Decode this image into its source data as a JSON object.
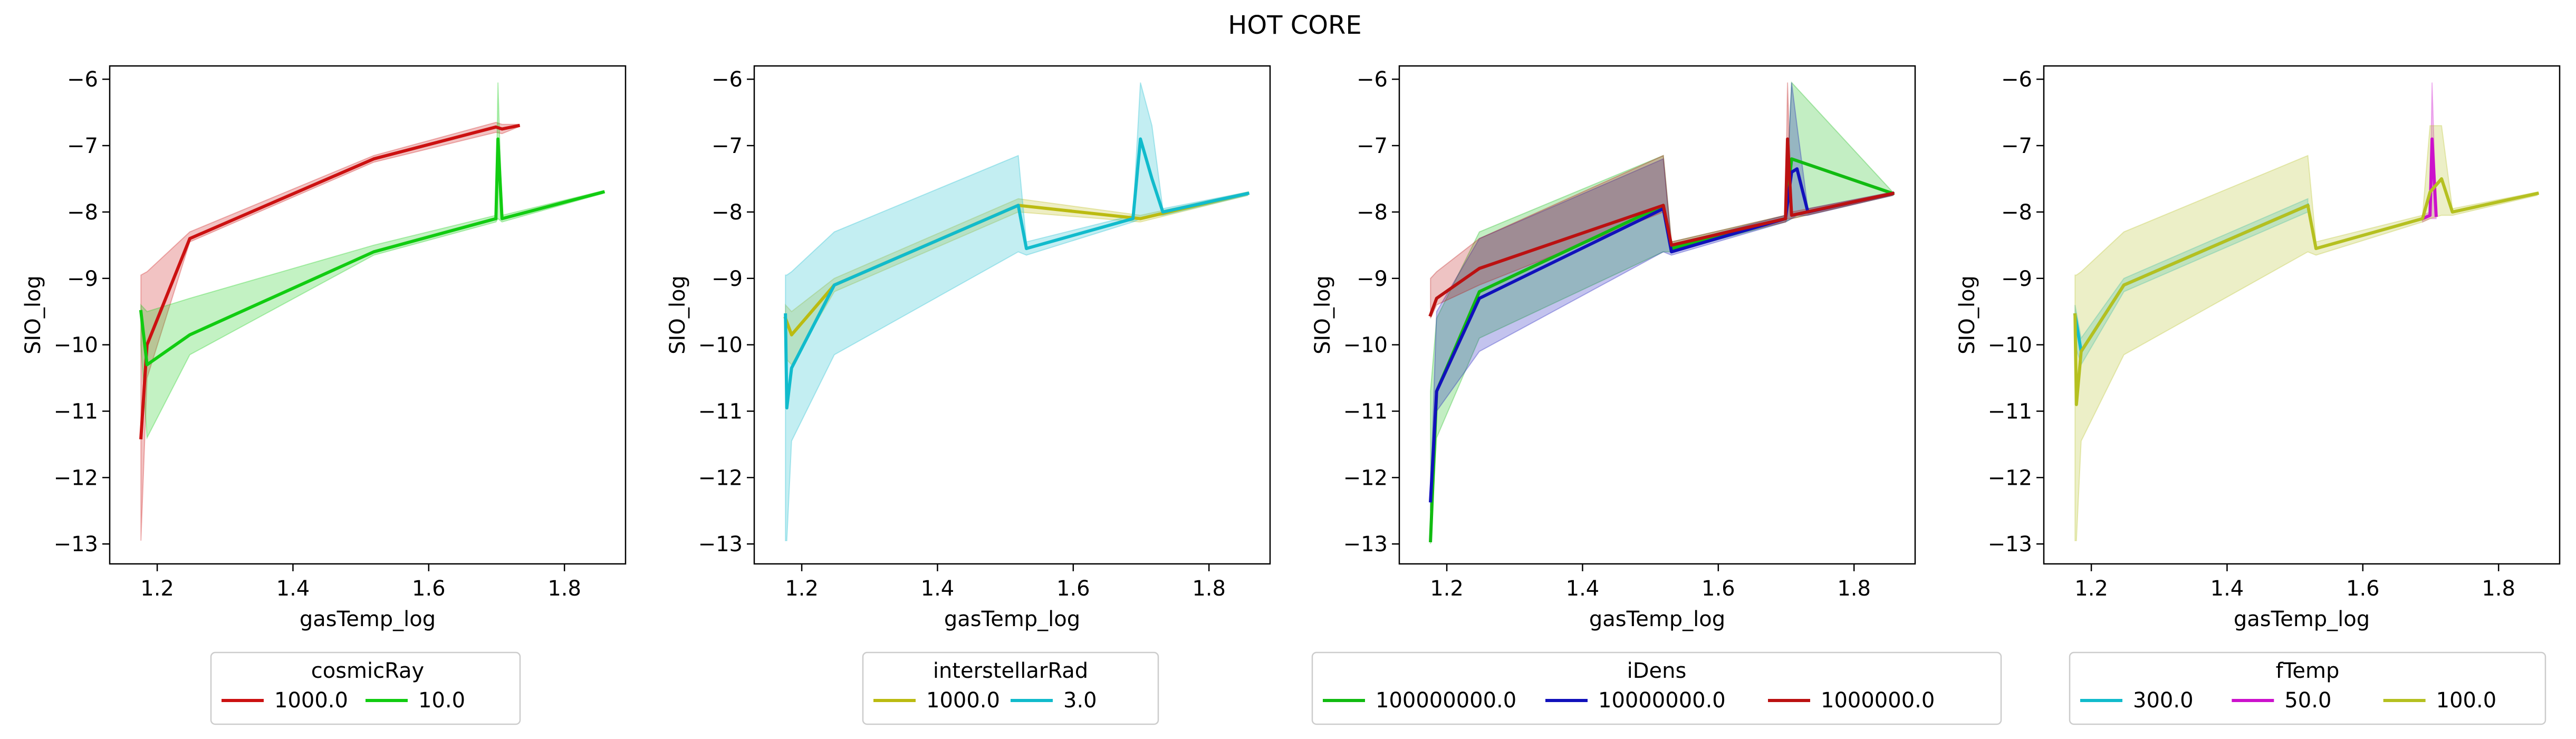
{
  "title": "HOT CORE",
  "chart_data": [
    {
      "type": "line",
      "xlabel": "gasTemp_log",
      "ylabel": "SIO_log",
      "xlim": [
        1.13,
        1.89
      ],
      "ylim": [
        -13.3,
        -5.8
      ],
      "xticks": [
        1.2,
        1.4,
        1.6,
        1.8
      ],
      "yticks": [
        -13,
        -12,
        -11,
        -10,
        -9,
        -8,
        -7,
        -6
      ],
      "legend": {
        "title": "cosmicRay",
        "placement": "below",
        "columns": 2
      },
      "series": [
        {
          "name": "1000.0",
          "color": "#cc1111",
          "x": [
            1.176,
            1.185,
            1.248,
            1.519,
            1.699,
            1.708,
            1.732
          ],
          "y": [
            -11.4,
            -10.0,
            -8.4,
            -7.2,
            -6.72,
            -6.75,
            -6.7
          ],
          "band_low": [
            -12.95,
            -10.5,
            -8.45,
            -7.25,
            -6.8,
            -6.82,
            -6.72
          ],
          "band_high": [
            -8.95,
            -8.9,
            -8.3,
            -7.15,
            -6.65,
            -6.68,
            -6.68
          ]
        },
        {
          "name": "10.0",
          "color": "#11cc11",
          "x": [
            1.176,
            1.185,
            1.248,
            1.519,
            1.699,
            1.702,
            1.708,
            1.857
          ],
          "y": [
            -9.5,
            -10.3,
            -9.85,
            -8.6,
            -8.1,
            -6.9,
            -8.1,
            -7.7
          ],
          "band_low": [
            -10.0,
            -11.4,
            -10.15,
            -8.65,
            -8.15,
            -8.1,
            -8.15,
            -7.72
          ],
          "band_high": [
            -9.4,
            -9.5,
            -9.3,
            -8.5,
            -8.05,
            -6.05,
            -8.05,
            -7.68
          ]
        }
      ]
    },
    {
      "type": "line",
      "xlabel": "gasTemp_log",
      "ylabel": "SIO_log",
      "xlim": [
        1.13,
        1.89
      ],
      "ylim": [
        -13.3,
        -5.8
      ],
      "xticks": [
        1.2,
        1.4,
        1.6,
        1.8
      ],
      "yticks": [
        -13,
        -12,
        -11,
        -10,
        -9,
        -8,
        -7,
        -6
      ],
      "legend": {
        "title": "interstellarRad",
        "placement": "below",
        "columns": 2
      },
      "series": [
        {
          "name": "1000.0",
          "color": "#bbbb11",
          "x": [
            1.176,
            1.185,
            1.248,
            1.519,
            1.699,
            1.857
          ],
          "y": [
            -9.6,
            -9.85,
            -9.1,
            -7.9,
            -8.1,
            -7.72
          ],
          "band_low": [
            -10.2,
            -10.3,
            -9.2,
            -8.0,
            -8.15,
            -7.75
          ],
          "band_high": [
            -9.4,
            -9.5,
            -9.0,
            -7.8,
            -8.05,
            -7.7
          ]
        },
        {
          "name": "3.0",
          "color": "#11bbcc",
          "x": [
            1.176,
            1.178,
            1.185,
            1.248,
            1.519,
            1.531,
            1.688,
            1.699,
            1.716,
            1.732,
            1.857
          ],
          "y": [
            -9.55,
            -10.95,
            -10.35,
            -9.1,
            -7.9,
            -8.55,
            -8.1,
            -6.9,
            -7.5,
            -8.0,
            -7.72
          ],
          "band_low": [
            -12.95,
            -12.95,
            -11.45,
            -10.15,
            -8.6,
            -8.65,
            -8.15,
            -8.1,
            -8.05,
            -8.05,
            -7.75
          ],
          "band_high": [
            -8.95,
            -8.95,
            -8.9,
            -8.3,
            -7.15,
            -8.45,
            -8.05,
            -6.05,
            -6.7,
            -7.95,
            -7.7
          ]
        }
      ]
    },
    {
      "type": "line",
      "xlabel": "gasTemp_log",
      "ylabel": "SIO_log",
      "xlim": [
        1.13,
        1.89
      ],
      "ylim": [
        -13.3,
        -5.8
      ],
      "xticks": [
        1.2,
        1.4,
        1.6,
        1.8
      ],
      "yticks": [
        -13,
        -12,
        -11,
        -10,
        -9,
        -8,
        -7,
        -6
      ],
      "legend": {
        "title": "iDens",
        "placement": "below",
        "columns": 3
      },
      "series": [
        {
          "name": "100000000.0",
          "color": "#11bb11",
          "x": [
            1.176,
            1.185,
            1.248,
            1.519,
            1.531,
            1.699,
            1.708,
            1.857
          ],
          "y": [
            -12.95,
            -10.7,
            -9.2,
            -7.9,
            -8.55,
            -8.1,
            -7.2,
            -7.72
          ],
          "band_low": [
            -13.0,
            -11.4,
            -9.9,
            -8.6,
            -8.6,
            -8.15,
            -8.1,
            -7.75
          ],
          "band_high": [
            -10.7,
            -9.6,
            -8.3,
            -7.15,
            -8.45,
            -8.05,
            -6.05,
            -7.7
          ]
        },
        {
          "name": "10000000.0",
          "color": "#1111bb",
          "x": [
            1.176,
            1.185,
            1.248,
            1.519,
            1.531,
            1.699,
            1.708,
            1.716,
            1.732,
            1.857
          ],
          "y": [
            -12.35,
            -10.7,
            -9.3,
            -7.95,
            -8.6,
            -8.1,
            -7.4,
            -7.35,
            -8.0,
            -7.72
          ],
          "band_low": [
            -12.5,
            -11.0,
            -10.1,
            -8.6,
            -8.65,
            -8.15,
            -8.1,
            -8.05,
            -8.05,
            -7.75
          ],
          "band_high": [
            -12.2,
            -9.5,
            -8.4,
            -7.2,
            -8.5,
            -8.05,
            -6.05,
            -6.7,
            -7.95,
            -7.7
          ]
        },
        {
          "name": "1000000.0",
          "color": "#bb1111",
          "x": [
            1.176,
            1.185,
            1.248,
            1.519,
            1.531,
            1.699,
            1.702,
            1.708,
            1.857
          ],
          "y": [
            -9.55,
            -9.3,
            -8.85,
            -7.9,
            -8.5,
            -8.1,
            -6.9,
            -8.05,
            -7.72
          ],
          "band_low": [
            -9.6,
            -9.4,
            -9.1,
            -8.0,
            -8.55,
            -8.15,
            -8.1,
            -8.1,
            -7.75
          ],
          "band_high": [
            -9.0,
            -8.9,
            -8.4,
            -7.15,
            -8.45,
            -8.05,
            -6.05,
            -8.0,
            -7.7
          ]
        }
      ]
    },
    {
      "type": "line",
      "xlabel": "gasTemp_log",
      "ylabel": "SIO_log",
      "xlim": [
        1.13,
        1.89
      ],
      "ylim": [
        -13.3,
        -5.8
      ],
      "xticks": [
        1.2,
        1.4,
        1.6,
        1.8
      ],
      "yticks": [
        -13,
        -12,
        -11,
        -10,
        -9,
        -8,
        -7,
        -6
      ],
      "legend": {
        "title": "fTemp",
        "placement": "below",
        "columns": 3
      },
      "series": [
        {
          "name": "300.0",
          "color": "#11bbcc",
          "x": [
            1.176,
            1.185,
            1.248,
            1.519
          ],
          "y": [
            -9.55,
            -10.1,
            -9.1,
            -7.9
          ],
          "band_low": [
            -10.0,
            -10.3,
            -9.2,
            -8.0
          ],
          "band_high": [
            -9.4,
            -9.9,
            -9.0,
            -7.8
          ]
        },
        {
          "name": "50.0",
          "color": "#cc11cc",
          "x": [
            1.688,
            1.699,
            1.702,
            1.708
          ],
          "y": [
            -8.1,
            -8.05,
            -6.9,
            -8.05
          ],
          "band_low": [
            -8.15,
            -8.1,
            -8.1,
            -8.1
          ],
          "band_high": [
            -8.05,
            -8.0,
            -6.05,
            -8.0
          ]
        },
        {
          "name": "100.0",
          "color": "#b5c020",
          "x": [
            1.176,
            1.178,
            1.185,
            1.248,
            1.519,
            1.531,
            1.688,
            1.699,
            1.716,
            1.732,
            1.857
          ],
          "y": [
            -9.55,
            -10.9,
            -10.1,
            -9.1,
            -7.9,
            -8.55,
            -8.1,
            -7.7,
            -7.5,
            -8.0,
            -7.72
          ],
          "band_low": [
            -12.95,
            -12.95,
            -11.45,
            -10.15,
            -8.6,
            -8.65,
            -8.15,
            -8.1,
            -8.05,
            -8.05,
            -7.75
          ],
          "band_high": [
            -8.95,
            -8.95,
            -8.9,
            -8.3,
            -7.15,
            -8.45,
            -8.05,
            -6.7,
            -6.7,
            -7.95,
            -7.7
          ]
        }
      ]
    }
  ]
}
